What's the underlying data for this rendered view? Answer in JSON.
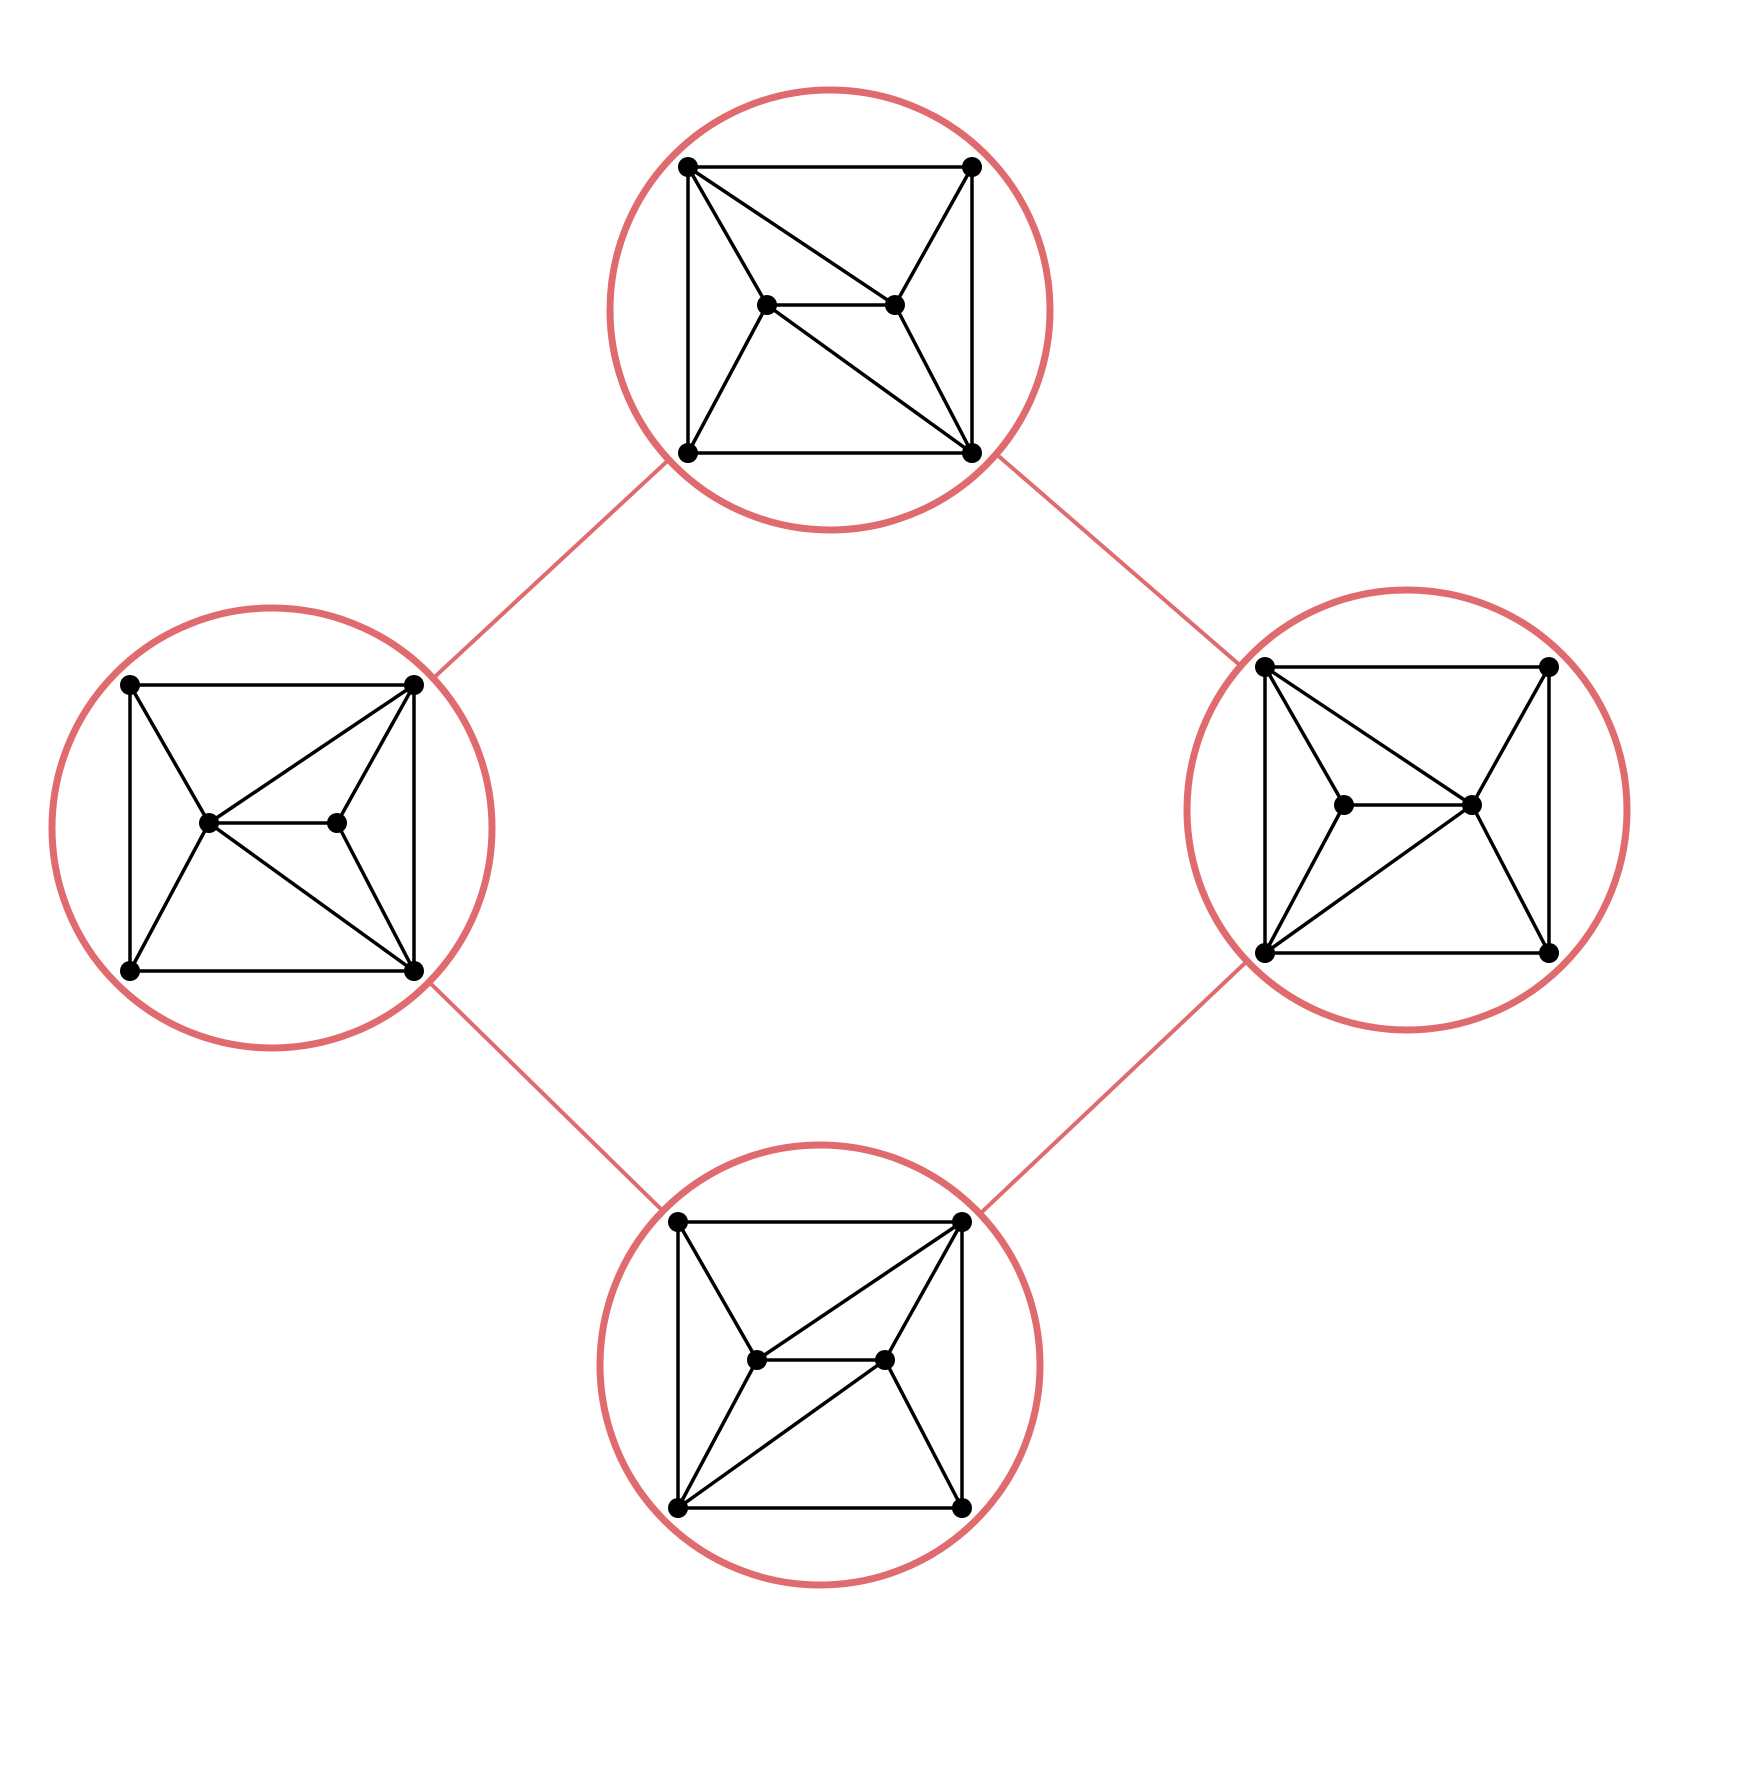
{
  "colors": {
    "background": "#ffffff",
    "ring": "#e06b6e",
    "connector": "#e06b6e",
    "node": "#000000",
    "edge": "#000000"
  },
  "graphs": [
    {
      "id": "top",
      "edges": [
        [
          0,
          1
        ],
        [
          1,
          3
        ],
        [
          3,
          2
        ],
        [
          2,
          0
        ],
        [
          0,
          4
        ],
        [
          0,
          5
        ],
        [
          1,
          5
        ],
        [
          4,
          5
        ],
        [
          4,
          2
        ],
        [
          4,
          3
        ],
        [
          5,
          3
        ]
      ]
    },
    {
      "id": "left",
      "edges": [
        [
          0,
          1
        ],
        [
          1,
          3
        ],
        [
          3,
          2
        ],
        [
          2,
          0
        ],
        [
          0,
          4
        ],
        [
          1,
          4
        ],
        [
          1,
          5
        ],
        [
          4,
          5
        ],
        [
          4,
          2
        ],
        [
          4,
          3
        ],
        [
          5,
          3
        ]
      ]
    },
    {
      "id": "right",
      "edges": [
        [
          0,
          1
        ],
        [
          1,
          3
        ],
        [
          3,
          2
        ],
        [
          2,
          0
        ],
        [
          0,
          4
        ],
        [
          0,
          5
        ],
        [
          1,
          5
        ],
        [
          4,
          5
        ],
        [
          4,
          2
        ],
        [
          5,
          2
        ],
        [
          5,
          3
        ]
      ]
    },
    {
      "id": "bottom",
      "edges": [
        [
          0,
          1
        ],
        [
          1,
          3
        ],
        [
          3,
          2
        ],
        [
          2,
          0
        ],
        [
          0,
          4
        ],
        [
          1,
          4
        ],
        [
          1,
          5
        ],
        [
          4,
          5
        ],
        [
          4,
          2
        ],
        [
          5,
          2
        ],
        [
          5,
          3
        ]
      ]
    }
  ],
  "connections": [
    [
      "top",
      "left"
    ],
    [
      "top",
      "right"
    ],
    [
      "left",
      "bottom"
    ],
    [
      "right",
      "bottom"
    ]
  ]
}
